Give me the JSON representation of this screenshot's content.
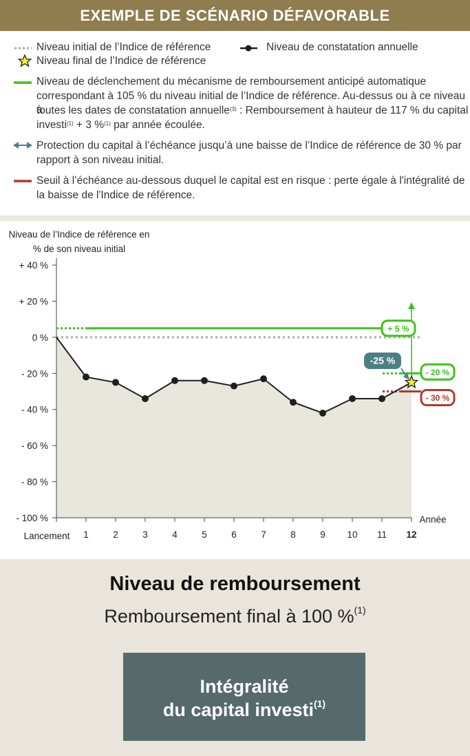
{
  "header": {
    "title": "EXEMPLE DE SCÉNARIO DÉFAVORABLE"
  },
  "legend": {
    "initial_level": "Niveau initial de l’Indice de référence",
    "annual_level": "Niveau de constatation annuelle",
    "final_level": "Niveau final de l’Indice de référence",
    "trigger_1": "Niveau de déclenchement du mécanisme de remboursement anticipé automatique",
    "trigger_2": "correspondant à 105 % du niveau initial de l’Indice de référence. Au-dessus ou à ce niveau à",
    "trigger_3a": "toutes les dates de constatation annuelle",
    "trigger_3_ref": "(3)",
    "trigger_3b": " : Remboursement à hauteur de 117 % du capital",
    "trigger_4a": "investi",
    "trigger_4_ref1": "(1)",
    "trigger_4b": " + 3 %",
    "trigger_4_ref2": "(1)",
    "trigger_4c": " par année écoulée.",
    "protection_1": "Protection du capital à l’échéance jusqu’à une baisse de l’Indice de référence de 30 % par",
    "protection_2": "rapport à son niveau initial.",
    "risk_1": "Seuil à l’échéance au-dessous duquel le capital est en risque : perte égale à l'intégralité de",
    "risk_2": "la baisse de l'Indice de référence."
  },
  "colors": {
    "header": "#8f7d4f",
    "green": "#3ec21a",
    "teal": "#4f7f86",
    "red": "#b13a2a",
    "series": "#1f1f1f",
    "fill": "#e9e6dd",
    "star": "#f3ef2a",
    "box": "#566a6c"
  },
  "chart_data": {
    "type": "line",
    "ylabel_1": "Niveau de l’Indice de référence en",
    "ylabel_2": "% de son niveau initial",
    "xlabel": "Année",
    "ylim": [
      -100,
      40
    ],
    "yticks": [
      40,
      20,
      0,
      -20,
      -40,
      -60,
      -80,
      -100
    ],
    "ytick_labels": [
      "+ 40 %",
      "+ 20 %",
      "0 %",
      "- 20 %",
      "- 40 %",
      "- 60 %",
      "- 80 %",
      "- 100 %"
    ],
    "x": [
      0,
      1,
      2,
      3,
      4,
      5,
      6,
      7,
      8,
      9,
      10,
      11,
      12
    ],
    "xtick_labels": [
      "Lancement",
      "1",
      "2",
      "3",
      "4",
      "5",
      "6",
      "7",
      "8",
      "9",
      "10",
      "11",
      "12"
    ],
    "series": [
      {
        "values": [
          0,
          -22,
          -25,
          -34,
          -24,
          -24,
          -27,
          -23,
          -36,
          -42,
          -34,
          -34,
          -25
        ]
      }
    ],
    "reference_lines": {
      "initial": 0,
      "trigger": 5,
      "protection": -30
    },
    "annotations": {
      "trigger": "+ 5 %",
      "final": "-25 %",
      "gap": "- 20 %",
      "barrier": "- 30 %"
    }
  },
  "bottom": {
    "title": "Niveau de remboursement",
    "subtitle": "Remboursement final à 100 %",
    "subtitle_ref": "(1)",
    "box_line1": "Intégralité",
    "box_line2": "du capital investi",
    "box_ref": "(1)"
  }
}
